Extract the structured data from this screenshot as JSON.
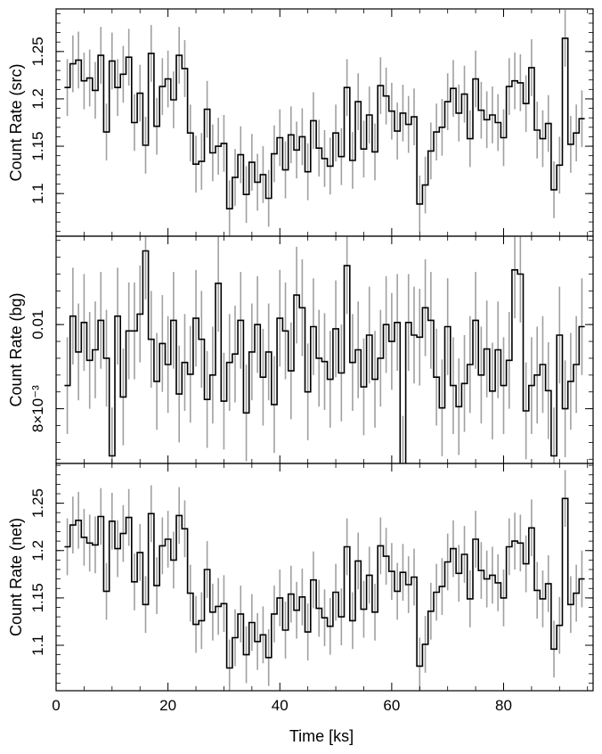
{
  "figure": {
    "xlabel": "Time [ks]",
    "x_ticks": [
      "0",
      "20",
      "40",
      "60",
      "80"
    ],
    "x_tick_values": [
      0,
      20,
      40,
      60,
      80
    ],
    "xlim": [
      0,
      96
    ],
    "line_color": "#000000",
    "errorbar_color": "#a0a0a0",
    "grid": false
  },
  "chart_data": [
    {
      "type": "line",
      "style": "step",
      "panel": "src",
      "ylabel": "Count Rate (src)",
      "ylim": [
        1.055,
        1.295
      ],
      "y_ticks": [
        "1.1",
        "1.15",
        "1.2",
        "1.25"
      ],
      "y_tick_values": [
        1.1,
        1.15,
        1.2,
        1.25
      ],
      "x": [
        2,
        3,
        4,
        5,
        6,
        7,
        8,
        9,
        10,
        11,
        12,
        13,
        14,
        15,
        16,
        17,
        18,
        19,
        20,
        21,
        22,
        23,
        24,
        25,
        26,
        27,
        28,
        29,
        30,
        31,
        32,
        33,
        34,
        35,
        36,
        37,
        38,
        39,
        40,
        41,
        42,
        43,
        44,
        45,
        46,
        47,
        48,
        49,
        50,
        51,
        52,
        53,
        54,
        55,
        56,
        57,
        58,
        59,
        60,
        61,
        62,
        63,
        64,
        65,
        66,
        67,
        68,
        69,
        70,
        71,
        72,
        73,
        74,
        75,
        76,
        77,
        78,
        79,
        80,
        81,
        82,
        83,
        84,
        85,
        86,
        87,
        88,
        89,
        90,
        91,
        92,
        93,
        94
      ],
      "y": [
        1.212,
        1.237,
        1.241,
        1.219,
        1.222,
        1.209,
        1.246,
        1.165,
        1.24,
        1.212,
        1.226,
        1.244,
        1.175,
        1.206,
        1.151,
        1.248,
        1.171,
        1.213,
        1.221,
        1.199,
        1.246,
        1.232,
        1.164,
        1.131,
        1.134,
        1.189,
        1.143,
        1.15,
        1.153,
        1.084,
        1.117,
        1.141,
        1.099,
        1.133,
        1.112,
        1.12,
        1.095,
        1.142,
        1.159,
        1.125,
        1.162,
        1.146,
        1.16,
        1.123,
        1.177,
        1.148,
        1.137,
        1.129,
        1.164,
        1.139,
        1.212,
        1.135,
        1.197,
        1.147,
        1.183,
        1.144,
        1.214,
        1.203,
        1.187,
        1.166,
        1.185,
        1.173,
        1.181,
        1.089,
        1.109,
        1.145,
        1.165,
        1.17,
        1.197,
        1.211,
        1.185,
        1.205,
        1.158,
        1.221,
        1.188,
        1.178,
        1.183,
        1.175,
        1.159,
        1.213,
        1.219,
        1.217,
        1.195,
        1.233,
        1.167,
        1.158,
        1.174,
        1.104,
        1.13,
        1.264,
        1.152,
        1.164,
        1.179
      ],
      "y_err": [
        0.03,
        0.03,
        0.03,
        0.03,
        0.03,
        0.03,
        0.03,
        0.03,
        0.03,
        0.03,
        0.03,
        0.03,
        0.03,
        0.03,
        0.03,
        0.03,
        0.03,
        0.03,
        0.03,
        0.03,
        0.03,
        0.03,
        0.03,
        0.03,
        0.03,
        0.03,
        0.03,
        0.03,
        0.03,
        0.03,
        0.03,
        0.03,
        0.03,
        0.03,
        0.03,
        0.03,
        0.03,
        0.03,
        0.03,
        0.03,
        0.03,
        0.03,
        0.03,
        0.03,
        0.03,
        0.03,
        0.03,
        0.03,
        0.03,
        0.03,
        0.03,
        0.03,
        0.03,
        0.03,
        0.03,
        0.03,
        0.03,
        0.03,
        0.03,
        0.03,
        0.03,
        0.03,
        0.03,
        0.03,
        0.03,
        0.03,
        0.03,
        0.03,
        0.03,
        0.03,
        0.03,
        0.03,
        0.03,
        0.03,
        0.03,
        0.03,
        0.03,
        0.03,
        0.03,
        0.03,
        0.03,
        0.03,
        0.03,
        0.03,
        0.03,
        0.03,
        0.03,
        0.03,
        0.03,
        0.03,
        0.03,
        0.03,
        0.03
      ]
    },
    {
      "type": "line",
      "style": "step",
      "panel": "bg",
      "ylabel": "Count Rate (bg)",
      "ylim": [
        0.0067,
        0.0121
      ],
      "y_ticks": [
        "8×10⁻³",
        "0.01"
      ],
      "y_tick_values": [
        0.008,
        0.01
      ],
      "x": [
        2,
        3,
        4,
        5,
        6,
        7,
        8,
        9,
        10,
        11,
        12,
        13,
        14,
        15,
        16,
        17,
        18,
        19,
        20,
        21,
        22,
        23,
        24,
        25,
        26,
        27,
        28,
        29,
        30,
        31,
        32,
        33,
        34,
        35,
        36,
        37,
        38,
        39,
        40,
        41,
        42,
        43,
        44,
        45,
        46,
        47,
        48,
        49,
        50,
        51,
        52,
        53,
        54,
        55,
        56,
        57,
        58,
        59,
        60,
        61,
        62,
        63,
        64,
        65,
        66,
        67,
        68,
        69,
        70,
        71,
        72,
        73,
        74,
        75,
        76,
        77,
        78,
        79,
        80,
        81,
        82,
        83,
        84,
        85,
        86,
        87,
        88,
        89,
        90,
        91,
        92,
        93,
        94
      ],
      "y": [
        0.00855,
        0.0102,
        0.00935,
        0.01005,
        0.00915,
        0.0094,
        0.0101,
        0.0092,
        0.00688,
        0.0102,
        0.00828,
        0.00985,
        0.00985,
        0.01025,
        0.01175,
        0.00965,
        0.00865,
        0.00955,
        0.00905,
        0.0101,
        0.00835,
        0.0091,
        0.00882,
        0.01015,
        0.00965,
        0.00822,
        0.0088,
        0.01098,
        0.00818,
        0.0091,
        0.0093,
        0.0101,
        0.0079,
        0.00935,
        0.01,
        0.00875,
        0.00935,
        0.0081,
        0.01015,
        0.00985,
        0.0089,
        0.0107,
        0.0104,
        0.0084,
        0.00995,
        0.0092,
        0.00912,
        0.0087,
        0.0099,
        0.00885,
        0.0114,
        0.0091,
        0.0094,
        0.00852,
        0.00975,
        0.0087,
        0.0092,
        0.01,
        0.0096,
        0.01005,
        0.00668,
        0.01005,
        0.00975,
        0.0097,
        0.0104,
        0.0101,
        0.00875,
        0.00802,
        0.00995,
        0.00855,
        0.00805,
        0.0086,
        0.00905,
        0.0101,
        0.0088,
        0.00942,
        0.00842,
        0.0094,
        0.00855,
        0.00915,
        0.0113,
        0.0112,
        0.00795,
        0.00855,
        0.0088,
        0.00905,
        0.00843,
        0.00688,
        0.00975,
        0.008,
        0.00865,
        0.00905,
        0.00995
      ],
      "y_err": [
        0.00115,
        0.00115,
        0.00115,
        0.00115,
        0.00115,
        0.00115,
        0.00115,
        0.00115,
        0.00115,
        0.00115,
        0.00115,
        0.00115,
        0.00115,
        0.00115,
        0.00115,
        0.00115,
        0.00115,
        0.00115,
        0.00115,
        0.00115,
        0.00115,
        0.00115,
        0.00115,
        0.00115,
        0.00115,
        0.00115,
        0.00115,
        0.00115,
        0.00115,
        0.00115,
        0.00115,
        0.00115,
        0.00115,
        0.00115,
        0.00115,
        0.00115,
        0.00115,
        0.00115,
        0.00115,
        0.00115,
        0.00115,
        0.00115,
        0.00115,
        0.00115,
        0.00115,
        0.00115,
        0.00115,
        0.00115,
        0.00115,
        0.00115,
        0.00115,
        0.00115,
        0.00115,
        0.00115,
        0.00115,
        0.00115,
        0.00115,
        0.00115,
        0.00115,
        0.00115,
        0.00115,
        0.00115,
        0.00115,
        0.00115,
        0.00115,
        0.00115,
        0.00115,
        0.00115,
        0.00115,
        0.00115,
        0.00115,
        0.00115,
        0.00115,
        0.00115,
        0.00115,
        0.00115,
        0.00115,
        0.00115,
        0.00115,
        0.00115,
        0.00115,
        0.00115,
        0.00115,
        0.00115,
        0.00115,
        0.00115,
        0.00115,
        0.00115,
        0.00115,
        0.00115,
        0.00115,
        0.00115,
        0.00115
      ]
    },
    {
      "type": "line",
      "style": "step",
      "panel": "net",
      "ylabel": "Count Rate (net)",
      "ylim": [
        1.052,
        1.292
      ],
      "y_ticks": [
        "1.1",
        "1.15",
        "1.2",
        "1.25"
      ],
      "y_tick_values": [
        1.1,
        1.15,
        1.2,
        1.25
      ],
      "x": [
        2,
        3,
        4,
        5,
        6,
        7,
        8,
        9,
        10,
        11,
        12,
        13,
        14,
        15,
        16,
        17,
        18,
        19,
        20,
        21,
        22,
        23,
        24,
        25,
        26,
        27,
        28,
        29,
        30,
        31,
        32,
        33,
        34,
        35,
        36,
        37,
        38,
        39,
        40,
        41,
        42,
        43,
        44,
        45,
        46,
        47,
        48,
        49,
        50,
        51,
        52,
        53,
        54,
        55,
        56,
        57,
        58,
        59,
        60,
        61,
        62,
        63,
        64,
        65,
        66,
        67,
        68,
        69,
        70,
        71,
        72,
        73,
        74,
        75,
        76,
        77,
        78,
        79,
        80,
        81,
        82,
        83,
        84,
        85,
        86,
        87,
        88,
        89,
        90,
        91,
        92,
        93,
        94
      ],
      "y": [
        1.204,
        1.227,
        1.232,
        1.214,
        1.208,
        1.206,
        1.236,
        1.157,
        1.231,
        1.202,
        1.218,
        1.235,
        1.167,
        1.198,
        1.143,
        1.239,
        1.163,
        1.205,
        1.212,
        1.19,
        1.237,
        1.223,
        1.155,
        1.122,
        1.126,
        1.18,
        1.135,
        1.141,
        1.144,
        1.076,
        1.108,
        1.133,
        1.09,
        1.124,
        1.104,
        1.111,
        1.087,
        1.133,
        1.15,
        1.116,
        1.154,
        1.137,
        1.151,
        1.114,
        1.169,
        1.139,
        1.129,
        1.12,
        1.156,
        1.13,
        1.204,
        1.126,
        1.189,
        1.138,
        1.174,
        1.135,
        1.205,
        1.194,
        1.178,
        1.157,
        1.177,
        1.164,
        1.172,
        1.078,
        1.101,
        1.136,
        1.156,
        1.162,
        1.188,
        1.202,
        1.176,
        1.196,
        1.149,
        1.212,
        1.179,
        1.17,
        1.174,
        1.166,
        1.15,
        1.204,
        1.21,
        1.208,
        1.186,
        1.224,
        1.158,
        1.149,
        1.165,
        1.096,
        1.121,
        1.255,
        1.143,
        1.155,
        1.17
      ],
      "y_err": [
        0.03,
        0.03,
        0.03,
        0.03,
        0.03,
        0.03,
        0.03,
        0.03,
        0.03,
        0.03,
        0.03,
        0.03,
        0.03,
        0.03,
        0.03,
        0.03,
        0.03,
        0.03,
        0.03,
        0.03,
        0.03,
        0.03,
        0.03,
        0.03,
        0.03,
        0.03,
        0.03,
        0.03,
        0.03,
        0.03,
        0.03,
        0.03,
        0.03,
        0.03,
        0.03,
        0.03,
        0.03,
        0.03,
        0.03,
        0.03,
        0.03,
        0.03,
        0.03,
        0.03,
        0.03,
        0.03,
        0.03,
        0.03,
        0.03,
        0.03,
        0.03,
        0.03,
        0.03,
        0.03,
        0.03,
        0.03,
        0.03,
        0.03,
        0.03,
        0.03,
        0.03,
        0.03,
        0.03,
        0.03,
        0.03,
        0.03,
        0.03,
        0.03,
        0.03,
        0.03,
        0.03,
        0.03,
        0.03,
        0.03,
        0.03,
        0.03,
        0.03,
        0.03,
        0.03,
        0.03,
        0.03,
        0.03,
        0.03,
        0.03,
        0.03,
        0.03,
        0.03,
        0.03,
        0.03,
        0.03,
        0.03,
        0.03,
        0.03
      ]
    }
  ]
}
